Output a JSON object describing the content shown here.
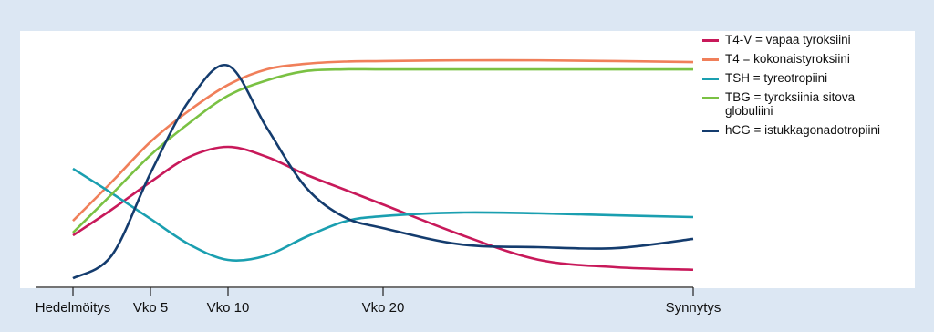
{
  "chart_data": {
    "type": "line",
    "x": [
      0,
      2.5,
      5,
      7.5,
      10,
      12.5,
      15,
      17.5,
      20,
      25,
      30,
      35,
      40
    ],
    "xlim": [
      0,
      40
    ],
    "xticks": [
      {
        "value": 0,
        "label": "Hedelmöitys"
      },
      {
        "value": 5,
        "label": "Vko 5"
      },
      {
        "value": 10,
        "label": "Vko 10"
      },
      {
        "value": 20,
        "label": "Vko 20"
      },
      {
        "value": 40,
        "label": "Synnytys"
      }
    ],
    "ylim": [
      0,
      100
    ],
    "legend": "right",
    "series": [
      {
        "name": "T4-V = vapaa tyroksiini",
        "color": "#c8195a",
        "values": [
          20.7,
          31,
          42,
          52,
          56,
          52,
          45,
          39,
          33,
          21,
          11,
          8,
          7
        ]
      },
      {
        "name": "T4 = kokonaistyroksiini",
        "color": "#f07f5a",
        "values": [
          26.5,
          42,
          58,
          70.5,
          80.7,
          86.9,
          89.1,
          90,
          90.2,
          90.5,
          90.5,
          90.2,
          89.8
        ]
      },
      {
        "name": "TSH = tyreotropiini",
        "color": "#1a9fb0",
        "values": [
          47.3,
          37.5,
          27.3,
          17.1,
          10.9,
          12.7,
          20,
          26.2,
          28.4,
          29.8,
          29.5,
          28.7,
          28
        ]
      },
      {
        "name": "TBG = tyroksiinia sitova globuliini",
        "color": "#7ac143",
        "values": [
          21.8,
          37.1,
          52.7,
          65.5,
          76.4,
          82.5,
          86.2,
          86.9,
          86.9,
          86.9,
          86.9,
          86.9,
          86.9
        ]
      },
      {
        "name": "hCG = istukkagonadotropiini",
        "color": "#143c6e",
        "values": [
          3.6,
          12.7,
          45.5,
          74.5,
          88.4,
          63.6,
          40,
          28,
          23.6,
          17.1,
          16,
          15.6,
          19.3
        ]
      }
    ]
  }
}
